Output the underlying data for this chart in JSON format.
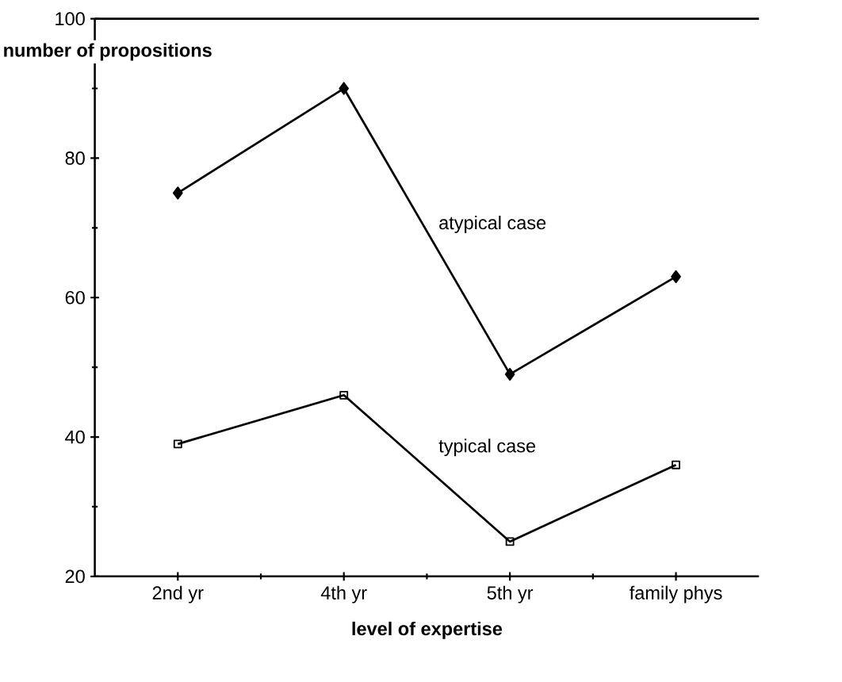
{
  "chart_data": {
    "type": "line",
    "xlabel": "level of expertise",
    "ylabel": "number of propositions",
    "categories": [
      "2nd yr",
      "4th yr",
      "5th yr",
      "family phys"
    ],
    "series": [
      {
        "name": "atypical case",
        "color": "#000000",
        "marker": "diamond",
        "values": [
          75,
          90,
          49,
          63
        ]
      },
      {
        "name": "typical case",
        "color": "#000000",
        "marker": "square",
        "values": [
          39,
          46,
          25,
          36
        ]
      }
    ],
    "ylim": [
      20,
      100
    ],
    "yticks": [
      20,
      40,
      60,
      80,
      100
    ],
    "grid": false,
    "line_style": "solid"
  }
}
